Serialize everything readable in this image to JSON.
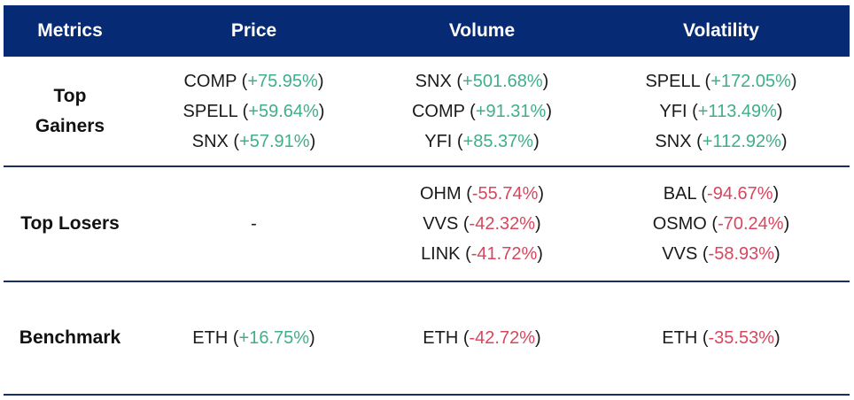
{
  "headers": [
    "Metrics",
    "Price",
    "Volume",
    "Volatility"
  ],
  "rows": [
    {
      "label": "Top Gainers",
      "label_lines": [
        "Top",
        "Gainers"
      ],
      "price": [
        {
          "name": "COMP",
          "change": "+75.95%"
        },
        {
          "name": "SPELL",
          "change": "+59.64%"
        },
        {
          "name": "SNX",
          "change": "+57.91%"
        }
      ],
      "volume": [
        {
          "name": "SNX",
          "change": "+501.68%"
        },
        {
          "name": "COMP",
          "change": "+91.31%"
        },
        {
          "name": "YFI",
          "change": "+85.37%"
        }
      ],
      "volatility": [
        {
          "name": "SPELL",
          "change": "+172.05%"
        },
        {
          "name": "YFI",
          "change": "+113.49%"
        },
        {
          "name": "SNX",
          "change": "+112.92%"
        }
      ]
    },
    {
      "label": "Top Losers",
      "price_placeholder": "-",
      "volume": [
        {
          "name": "OHM",
          "change": "-55.74%"
        },
        {
          "name": "VVS",
          "change": "-42.32%"
        },
        {
          "name": "LINK",
          "change": "-41.72%"
        }
      ],
      "volatility": [
        {
          "name": "BAL",
          "change": "-94.67%"
        },
        {
          "name": "OSMO",
          "change": "-70.24%"
        },
        {
          "name": "VVS",
          "change": "-58.93%"
        }
      ]
    },
    {
      "label": "Benchmark",
      "price": [
        {
          "name": "ETH",
          "change": "+16.75%"
        }
      ],
      "volume": [
        {
          "name": "ETH",
          "change": "-42.72%"
        }
      ],
      "volatility": [
        {
          "name": "ETH",
          "change": "-35.53%"
        }
      ]
    }
  ],
  "colors": {
    "header_bg": "#062b74",
    "positive": "#3fae8c",
    "negative": "#d8465e"
  }
}
